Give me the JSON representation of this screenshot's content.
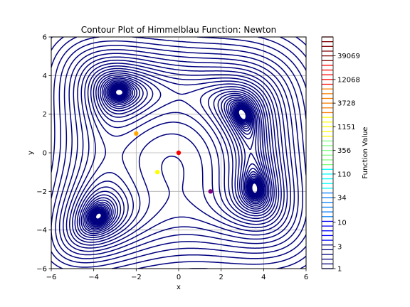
{
  "chart_data": {
    "type": "contour",
    "title": "Contour Plot of Himmelblau Function: Newton",
    "xlabel": "x",
    "ylabel": "y",
    "xlim": [
      -6,
      6
    ],
    "ylim": [
      -6,
      6
    ],
    "xticks": [
      -6,
      -4,
      -2,
      0,
      2,
      4,
      6
    ],
    "yticks": [
      -6,
      -4,
      -2,
      0,
      2,
      4,
      6
    ],
    "grid": true,
    "function": "(x^2 + y - 11)^2 + (x + y^2 - 7)^2",
    "contour_scale": "log",
    "contour_level_range": [
      1,
      100000
    ],
    "contour_level_count": 50,
    "contour_color": "#00007f",
    "colorbar": {
      "label": "Function Value",
      "tick_labels": [
        "1",
        "3",
        "10",
        "34",
        "110",
        "356",
        "1151",
        "3728",
        "12068",
        "39069"
      ],
      "colors": [
        "#00007f",
        "#0000ff",
        "#007fff",
        "#00ffff",
        "#7fff7f",
        "#ffff00",
        "#ff7f00",
        "#ff0000",
        "#7f0000"
      ]
    },
    "points": [
      {
        "x": 0,
        "y": 0,
        "color": "#ff0000"
      },
      {
        "x": -2,
        "y": 1,
        "color": "#ffa500"
      },
      {
        "x": -1,
        "y": -1,
        "color": "#ffff00"
      },
      {
        "x": 1.5,
        "y": -2,
        "color": "#800080"
      }
    ]
  }
}
